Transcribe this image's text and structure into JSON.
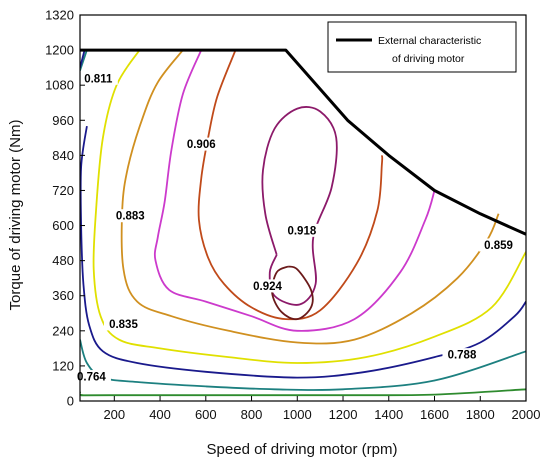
{
  "chart_data": {
    "type": "contour",
    "xlabel": "Speed of driving motor (rpm)",
    "ylabel": "Torque of driving motor (Nm)",
    "xlim": [
      50,
      2000
    ],
    "ylim": [
      0,
      1320
    ],
    "xticks": [
      200,
      400,
      600,
      800,
      1000,
      1200,
      1400,
      1600,
      1800,
      2000
    ],
    "yticks": [
      0,
      120,
      240,
      360,
      480,
      600,
      720,
      840,
      960,
      1080,
      1200,
      1320
    ],
    "grid": false,
    "legend": {
      "placement": "top-right",
      "entries": [
        {
          "line1": "External characteristic",
          "line2": "of driving motor",
          "color": "#000000"
        }
      ]
    },
    "external_characteristic": {
      "color": "#000000",
      "points": [
        [
          50,
          1200
        ],
        [
          950,
          1200
        ],
        [
          1220,
          960
        ],
        [
          1400,
          840
        ],
        [
          1600,
          720
        ],
        [
          1800,
          640
        ],
        [
          2000,
          570
        ]
      ]
    },
    "contours": [
      {
        "level": "0.764",
        "color": "#2e8b2e",
        "label_at": [
          100,
          75
        ],
        "paths": [
          [
            [
              50,
              30
            ],
            [
              60,
              20
            ],
            [
              180,
              20
            ],
            [
              1200,
              20
            ],
            [
              1600,
              22
            ],
            [
              2000,
              40
            ]
          ]
        ]
      },
      {
        "level": "0.788",
        "color": "#1d8080",
        "label_at": [
          1720,
          150
        ],
        "paths": [
          [
            [
              50,
              210
            ],
            [
              80,
              130
            ],
            [
              150,
              80
            ],
            [
              300,
              65
            ],
            [
              600,
              50
            ],
            [
              900,
              40
            ],
            [
              1200,
              40
            ],
            [
              1600,
              70
            ],
            [
              2000,
              170
            ]
          ],
          [
            [
              50,
              1130
            ],
            [
              80,
              1200
            ]
          ]
        ]
      },
      {
        "level": "0.811",
        "color": "#1a1a8c",
        "label_at": [
          130,
          1095
        ],
        "paths": [
          [
            [
              70,
              1200
            ],
            [
              50,
              1140
            ]
          ],
          [
            [
              80,
              940
            ],
            [
              55,
              800
            ],
            [
              55,
              600
            ],
            [
              65,
              400
            ],
            [
              90,
              260
            ],
            [
              150,
              170
            ],
            [
              300,
              130
            ],
            [
              600,
              100
            ],
            [
              1000,
              80
            ],
            [
              1300,
              100
            ],
            [
              1600,
              150
            ],
            [
              1800,
              200
            ],
            [
              1950,
              290
            ],
            [
              2000,
              340
            ]
          ]
        ]
      },
      {
        "level": "0.835",
        "color": "#e0e000",
        "label_at": [
          240,
          255
        ],
        "paths": [
          [
            [
              310,
              1200
            ],
            [
              210,
              1080
            ],
            [
              150,
              900
            ],
            [
              120,
              650
            ],
            [
              110,
              450
            ],
            [
              140,
              290
            ],
            [
              220,
              210
            ],
            [
              400,
              180
            ],
            [
              700,
              150
            ],
            [
              1000,
              130
            ],
            [
              1300,
              150
            ],
            [
              1600,
              220
            ],
            [
              1850,
              320
            ],
            [
              2000,
              510
            ]
          ]
        ]
      },
      {
        "level": "0.859",
        "color": "#d09020",
        "label_at": [
          1880,
          525
        ],
        "paths": [
          [
            [
              500,
              1200
            ],
            [
              390,
              1090
            ],
            [
              320,
              960
            ],
            [
              260,
              800
            ],
            [
              235,
              660
            ],
            [
              240,
              450
            ],
            [
              300,
              340
            ],
            [
              450,
              290
            ],
            [
              700,
              240
            ],
            [
              1000,
              200
            ],
            [
              1250,
              210
            ],
            [
              1500,
              300
            ],
            [
              1700,
              420
            ],
            [
              1830,
              550
            ],
            [
              1880,
              640
            ]
          ]
        ]
      },
      {
        "level": "0.883",
        "color": "#cc3acc",
        "label_at": [
          270,
          625
        ],
        "paths": [
          [
            [
              580,
              1200
            ],
            [
              500,
              1050
            ],
            [
              450,
              860
            ],
            [
              420,
              680
            ],
            [
              390,
              560
            ],
            [
              380,
              480
            ],
            [
              440,
              380
            ],
            [
              600,
              340
            ],
            [
              800,
              290
            ],
            [
              1000,
              240
            ],
            [
              1250,
              280
            ],
            [
              1450,
              440
            ],
            [
              1560,
              620
            ],
            [
              1600,
              720
            ]
          ]
        ]
      },
      {
        "level": "0.906",
        "color": "#c04a1a",
        "label_at": [
          580,
          870
        ],
        "paths": [
          [
            [
              730,
              1200
            ],
            [
              650,
              1040
            ],
            [
              610,
              900
            ],
            [
              580,
              760
            ],
            [
              570,
              620
            ],
            [
              610,
              490
            ],
            [
              680,
              400
            ],
            [
              800,
              320
            ],
            [
              950,
              280
            ],
            [
              1100,
              310
            ],
            [
              1260,
              470
            ],
            [
              1350,
              650
            ],
            [
              1370,
              810
            ],
            [
              1370,
              840
            ]
          ]
        ]
      },
      {
        "level": "0.918",
        "color": "#8c1a6a",
        "label_at": [
          1020,
          575
        ],
        "paths": [
          [
            [
              910,
              500
            ],
            [
              860,
              640
            ],
            [
              850,
              790
            ],
            [
              900,
              930
            ],
            [
              1000,
              1000
            ],
            [
              1100,
              990
            ],
            [
              1170,
              900
            ],
            [
              1150,
              730
            ],
            [
              1070,
              560
            ],
            [
              1080,
              400
            ],
            [
              1010,
              330
            ],
            [
              900,
              360
            ],
            [
              880,
              440
            ],
            [
              910,
              500
            ]
          ]
        ]
      },
      {
        "level": "0.924",
        "color": "#6b1a1a",
        "label_at": [
          870,
          385
        ],
        "paths": [
          [
            [
              960,
              460
            ],
            [
              910,
              440
            ],
            [
              890,
              370
            ],
            [
              930,
              305
            ],
            [
              1000,
              280
            ],
            [
              1060,
              320
            ],
            [
              1060,
              380
            ],
            [
              1000,
              450
            ],
            [
              960,
              460
            ]
          ]
        ]
      }
    ]
  }
}
